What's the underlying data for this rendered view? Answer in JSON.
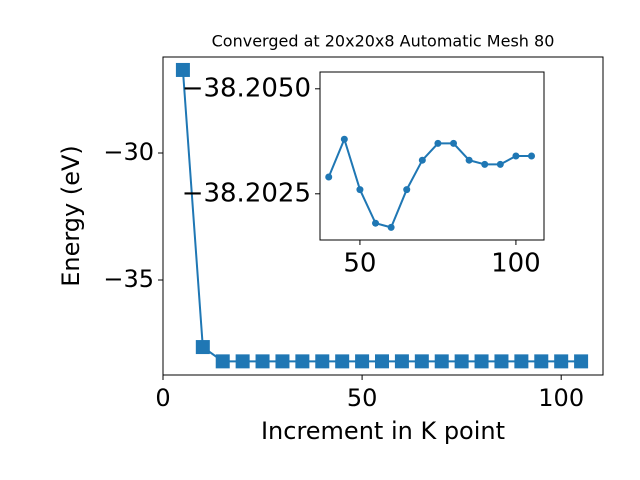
{
  "chart_data": [
    {
      "type": "line",
      "title": "Converged at 20x20x8 Automatic Mesh 80",
      "xlabel": "Increment in K point",
      "ylabel": "Energy (eV)",
      "x": [
        5,
        10,
        15,
        20,
        25,
        30,
        35,
        40,
        45,
        50,
        55,
        60,
        65,
        70,
        75,
        80,
        85,
        90,
        95,
        100,
        105
      ],
      "series": [
        {
          "color": "#1f77b4",
          "marker": "square",
          "values": [
            -26.73,
            -37.64,
            -38.203,
            -38.203,
            -38.203,
            -38.203,
            -38.203,
            -38.2029,
            -38.2038,
            -38.2026,
            -38.2018,
            -38.2017,
            -38.2026,
            -38.2033,
            -38.2037,
            -38.2037,
            -38.2033,
            -38.2032,
            -38.2032,
            -38.2034,
            -38.2034
          ]
        }
      ],
      "xlim": [
        0,
        110.5
      ],
      "ylim": [
        -38.74,
        -26.22
      ],
      "xticks": [
        0,
        50,
        100
      ],
      "yticks": [
        {
          "value": -35,
          "label": "−35"
        },
        {
          "value": -30,
          "label": "−30"
        }
      ],
      "grid": false
    },
    {
      "type": "line",
      "x": [
        40,
        45,
        50,
        55,
        60,
        65,
        70,
        75,
        80,
        85,
        90,
        95,
        100,
        105
      ],
      "series": [
        {
          "color": "#1f77b4",
          "marker": "circle",
          "values": [
            -38.2029,
            -38.2038,
            -38.2026,
            -38.2018,
            -38.2017,
            -38.2026,
            -38.2033,
            -38.2037,
            -38.2037,
            -38.2033,
            -38.2032,
            -38.2032,
            -38.2034,
            -38.2034
          ]
        }
      ],
      "xlim": [
        37.2,
        109
      ],
      "ylim": [
        -38.2014,
        -38.2054
      ],
      "xticks": [
        50,
        100
      ],
      "yticks": [
        {
          "value": -38.205,
          "label": "−38.2050"
        },
        {
          "value": -38.2025,
          "label": "−38.2025"
        }
      ],
      "grid": false
    }
  ]
}
